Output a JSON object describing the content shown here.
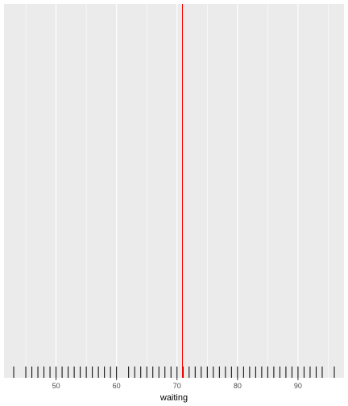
{
  "chart_data": {
    "type": "rug",
    "xlabel": "waiting",
    "ylabel": "",
    "xlim": [
      41.4,
      97.6
    ],
    "x_ticks": [
      50,
      60,
      70,
      80,
      90
    ],
    "x_tick_labels": [
      "50",
      "60",
      "70",
      "80",
      "90"
    ],
    "grid": true,
    "background_color": "#ebebeb",
    "gridline_color": "#ffffff",
    "rug_color": "#000000",
    "rug_values": [
      43,
      45,
      46,
      47,
      48,
      49,
      50,
      51,
      52,
      53,
      54,
      55,
      56,
      57,
      58,
      59,
      60,
      62,
      63,
      64,
      65,
      66,
      67,
      68,
      69,
      70,
      71,
      72,
      73,
      74,
      75,
      76,
      77,
      78,
      79,
      80,
      81,
      82,
      83,
      84,
      85,
      86,
      87,
      88,
      89,
      90,
      91,
      92,
      93,
      94,
      96
    ],
    "vline": {
      "x": 70.9,
      "color": "#ff0000"
    }
  }
}
